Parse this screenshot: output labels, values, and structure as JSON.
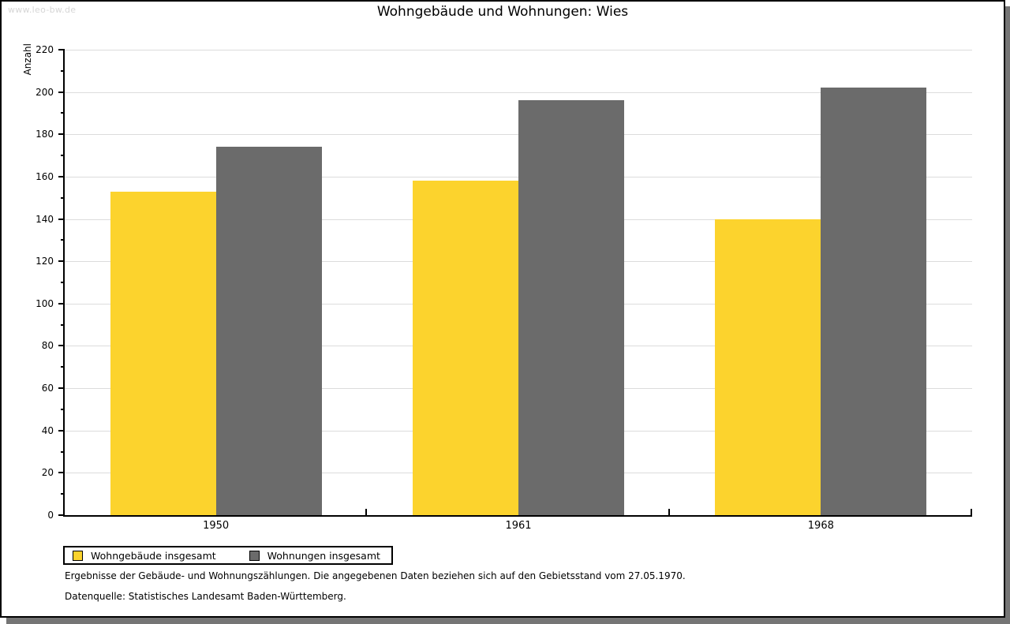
{
  "watermark": "www.leo-bw.de",
  "title": "Wohngebäude und Wohnungen: Wies",
  "chart_data": {
    "type": "bar",
    "title": "Wohngebäude und Wohnungen: Wies",
    "categories": [
      "1950",
      "1961",
      "1968"
    ],
    "series": [
      {
        "name": "Wohngebäude insgesamt",
        "color": "#fcd32d",
        "values": [
          153,
          158,
          140
        ]
      },
      {
        "name": "Wohnungen insgesamt",
        "color": "#6b6b6b",
        "values": [
          174,
          196,
          202
        ]
      }
    ],
    "xlabel": "",
    "ylabel": "Anzahl",
    "ylim": [
      0,
      220
    ],
    "ytick_step": 20,
    "yminor_step": 10,
    "grid": true,
    "gridline_color": "#dcdcdc",
    "legend_position": "bottom-left"
  },
  "footnotes": [
    "Ergebnisse der Gebäude- und Wohnungszählungen. Die angegebenen Daten beziehen sich auf den Gebietsstand vom 27.05.1970.",
    "Datenquelle: Statistisches Landesamt Baden-Württemberg."
  ],
  "colors": {
    "panel_border": "#000000",
    "shadow": "#757575",
    "watermark": "#d6d6d6",
    "series_1": "#fcd32d",
    "series_2": "#6b6b6b"
  }
}
